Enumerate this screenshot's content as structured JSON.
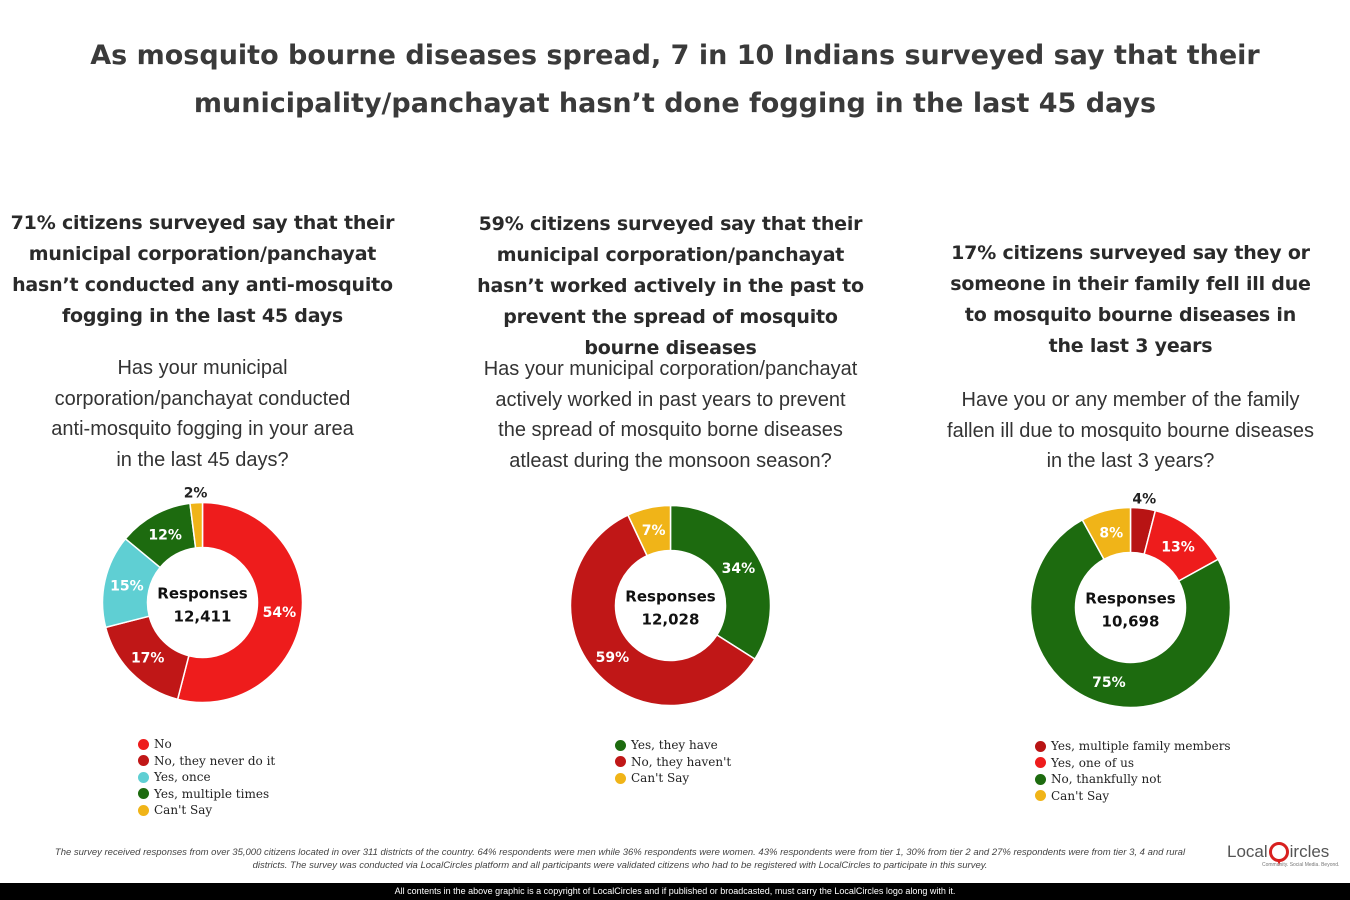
{
  "title": "As mosquito bourne diseases spread, 7 in 10 Indians surveyed say that their municipality/panchayat hasn’t done fogging in the last 45 days",
  "panels": [
    {
      "heading": "71% citizens surveyed say that their municipal corporation/panchayat hasn’t conducted any anti-mosquito fogging in the last 45 days",
      "question": "Has your municipal corporation/panchayat conducted anti-mosquito fogging in your area in the last 45 days?",
      "center_label": "Responses",
      "center_value": "12,411"
    },
    {
      "heading": "59% citizens surveyed say that their municipal corporation/panchayat hasn’t worked actively in the past to prevent the spread of mosquito bourne diseases",
      "question": "Has your municipal corporation/panchayat actively worked in past years to prevent the spread of mosquito borne diseases atleast during the monsoon season?",
      "center_label": "Responses",
      "center_value": "12,028"
    },
    {
      "heading": "17% citizens surveyed say they or someone in their family fell ill due to mosquito bourne diseases in the last 3 years",
      "question": "Have you or any member of the family fallen ill due to mosquito bourne diseases in the last 3 years?",
      "center_label": "Responses",
      "center_value": "10,698"
    }
  ],
  "chart_data": [
    {
      "type": "pie",
      "donut": true,
      "legend_position": "bottom",
      "slices": [
        {
          "label": "No",
          "value": 54,
          "display": "54%",
          "color": "#ee1c1c"
        },
        {
          "label": "No, they never do it",
          "value": 17,
          "display": "17%",
          "color": "#c01717"
        },
        {
          "label": "Yes, once",
          "value": 15,
          "display": "15%",
          "color": "#5fcfd3"
        },
        {
          "label": "Yes, multiple times",
          "value": 12,
          "display": "12%",
          "color": "#1d6b0f"
        },
        {
          "label": "Can't Say",
          "value": 2,
          "display": "2%",
          "color": "#f0b418"
        }
      ]
    },
    {
      "type": "pie",
      "donut": true,
      "legend_position": "bottom",
      "slices": [
        {
          "label": "Yes, they have",
          "value": 34,
          "display": "34%",
          "color": "#1d6b0f"
        },
        {
          "label": "No, they haven't",
          "value": 59,
          "display": "59%",
          "color": "#c01717"
        },
        {
          "label": "Can't Say",
          "value": 7,
          "display": "7%",
          "color": "#f0b418"
        }
      ]
    },
    {
      "type": "pie",
      "donut": true,
      "legend_position": "bottom",
      "slices": [
        {
          "label": "Yes, multiple family members",
          "value": 4,
          "display": "4%",
          "color": "#b81414"
        },
        {
          "label": "Yes, one of us",
          "value": 13,
          "display": "13%",
          "color": "#ee1c1c"
        },
        {
          "label": "No, thankfully not",
          "value": 75,
          "display": "75%",
          "color": "#1d6b0f"
        },
        {
          "label": "Can't Say",
          "value": 8,
          "display": "8%",
          "color": "#f0b418"
        }
      ]
    }
  ],
  "footnote": "The survey received responses from over 35,000 citizens located in over 311 districts of the country. 64% respondents were men while 36% respondents were women. 43% respondents were from tier 1, 30% from tier 2 and 27% respondents were from tier 3, 4 and rural districts. The survey was conducted via LocalCircles platform and all participants were validated citizens who had to be registered with LocalCircles to participate in this survey.",
  "brand": {
    "left": "Local",
    "right": "ircles",
    "tagline": "Community. Social Media. Beyond."
  },
  "copyright": "All contents in the above graphic is a copyright of LocalCircles and if published or broadcasted, must carry the LocalCircles logo along with it."
}
